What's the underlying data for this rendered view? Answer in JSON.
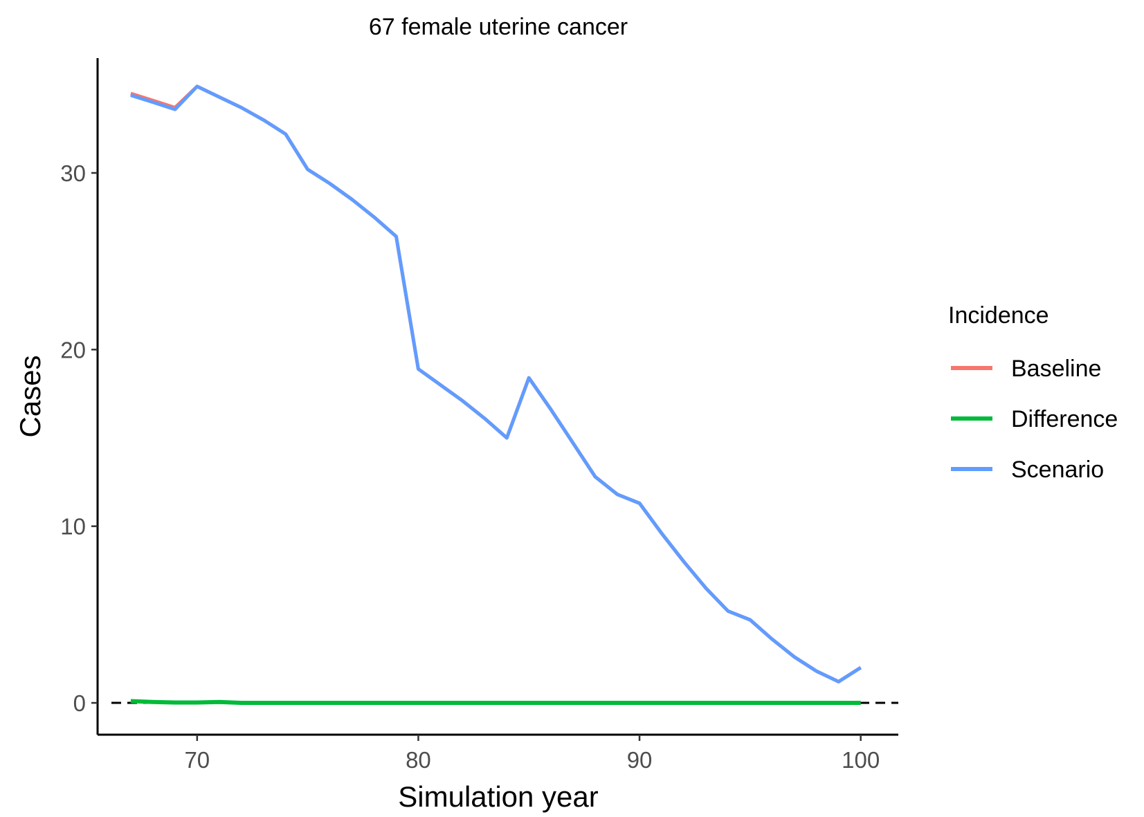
{
  "chart_data": {
    "type": "line",
    "title": "67 female uterine cancer",
    "xlabel": "Simulation year",
    "ylabel": "Cases",
    "xlim": [
      65.5,
      101.7
    ],
    "ylim": [
      -1.8,
      36.5
    ],
    "x_ticks": [
      70,
      80,
      90,
      100
    ],
    "y_ticks": [
      0,
      10,
      20,
      30
    ],
    "x_tick_labels": [
      "70",
      "80",
      "90",
      "100"
    ],
    "y_tick_labels": [
      "0",
      "10",
      "20",
      "30"
    ],
    "grid": false,
    "reference_line": {
      "y": 0,
      "style": "dashed",
      "color": "#000000"
    },
    "legend": {
      "title": "Incidence",
      "position": "right"
    },
    "x": [
      67,
      68,
      69,
      70,
      71,
      72,
      73,
      74,
      75,
      76,
      77,
      78,
      79,
      80,
      81,
      82,
      83,
      84,
      85,
      86,
      87,
      88,
      89,
      90,
      91,
      92,
      93,
      94,
      95,
      96,
      97,
      98,
      99,
      100
    ],
    "series": [
      {
        "name": "Baseline",
        "color": "#F8766D",
        "values": [
          34.5,
          34.1,
          33.7,
          34.9,
          34.3,
          33.7,
          33.0,
          32.2,
          30.2,
          29.4,
          28.5,
          27.5,
          26.4,
          18.9,
          18.0,
          17.1,
          16.1,
          15.0,
          18.4,
          16.6,
          14.7,
          12.8,
          11.8,
          11.3,
          9.6,
          8.0,
          6.5,
          5.2,
          4.7,
          3.6,
          2.6,
          1.8,
          1.2,
          2.0
        ]
      },
      {
        "name": "Difference",
        "color": "#00BA38",
        "values": [
          0.1,
          0.05,
          0.02,
          0.02,
          0.05,
          0,
          0,
          0,
          0,
          0,
          0,
          0,
          0,
          0,
          0,
          0,
          0,
          0,
          0,
          0,
          0,
          0,
          0,
          0,
          0,
          0,
          0,
          0,
          0,
          0,
          0,
          0,
          0,
          0
        ]
      },
      {
        "name": "Scenario",
        "color": "#619CFF",
        "values": [
          34.4,
          34.0,
          33.6,
          34.9,
          34.3,
          33.7,
          33.0,
          32.2,
          30.2,
          29.4,
          28.5,
          27.5,
          26.4,
          18.9,
          18.0,
          17.1,
          16.1,
          15.0,
          18.4,
          16.6,
          14.7,
          12.8,
          11.8,
          11.3,
          9.6,
          8.0,
          6.5,
          5.2,
          4.7,
          3.6,
          2.6,
          1.8,
          1.2,
          2.0
        ]
      }
    ]
  }
}
